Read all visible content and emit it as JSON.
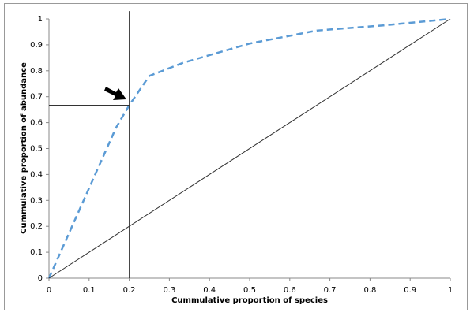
{
  "chart_data": {
    "type": "line",
    "x_label": "Cummulative proportion of species",
    "y_label": "Cummulative proportion of abundance",
    "xlim": [
      0,
      1
    ],
    "ylim": [
      0,
      1
    ],
    "xticks": [
      0,
      0.1,
      0.2,
      0.3,
      0.4,
      0.5,
      0.6,
      0.7,
      0.8,
      0.9,
      1
    ],
    "yticks": [
      0,
      0.1,
      0.2,
      0.3,
      0.4,
      0.5,
      0.6,
      0.7,
      0.8,
      0.9,
      1
    ],
    "series": [
      {
        "color": "#5b9bd5",
        "dash": true,
        "x": [
          0,
          0.167,
          0.2,
          0.25,
          0.333,
          0.5,
          0.667,
          0.833,
          1
        ],
        "values": [
          0,
          0.58,
          0.667,
          0.78,
          0.83,
          0.905,
          0.955,
          0.975,
          1
        ]
      },
      {
        "color": "#333333",
        "dash": false,
        "x": [
          0,
          1
        ],
        "values": [
          0,
          1
        ]
      },
      {
        "color": "#333333",
        "dash": false,
        "x": [
          0,
          0.2,
          0.2,
          0.2
        ],
        "values": [
          0.667,
          0.667,
          0,
          1.03
        ]
      }
    ]
  }
}
